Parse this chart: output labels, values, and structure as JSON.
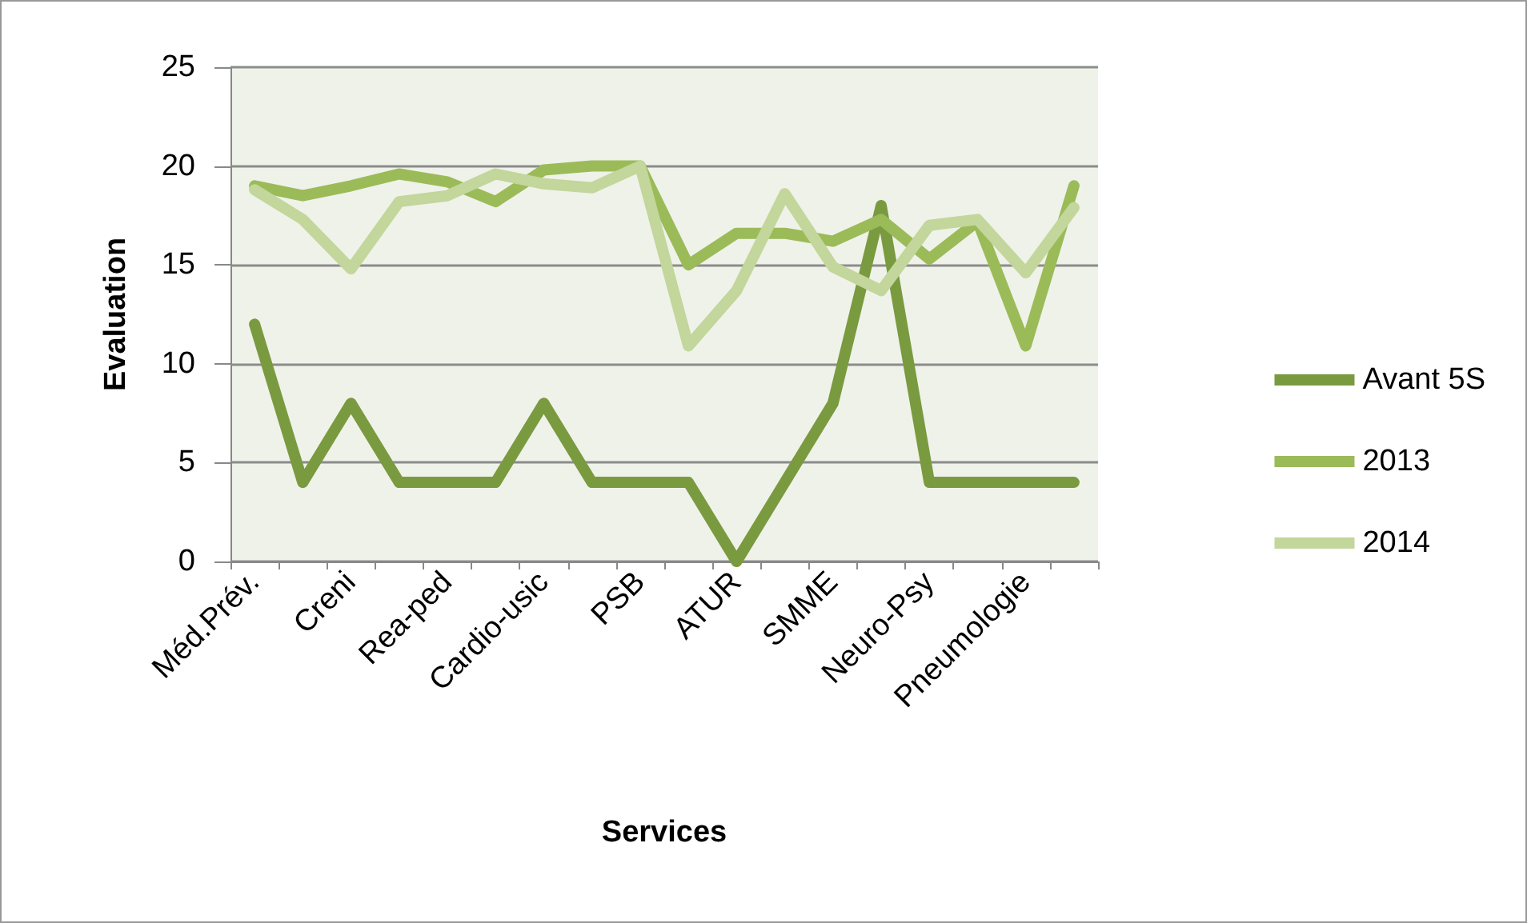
{
  "chart_data": {
    "type": "line",
    "xlabel": "Services",
    "ylabel": "Evaluation",
    "categories": [
      "Méd.Prév.",
      null,
      "Creni",
      null,
      "Rea-ped",
      null,
      "Cardio-usic",
      null,
      "PSB",
      null,
      "ATUR",
      null,
      "SMME",
      null,
      "Neuro-Psy",
      null,
      "Pneumologie",
      null
    ],
    "series": [
      {
        "name": "Avant 5S",
        "color": "#7a9a40",
        "values": [
          12,
          4,
          8,
          4,
          4,
          4,
          8,
          4,
          4,
          4,
          0,
          4,
          8,
          18,
          4,
          4,
          4,
          4
        ]
      },
      {
        "name": "2013",
        "color": "#9bbb59",
        "values": [
          19,
          18.5,
          19,
          19.6,
          19.2,
          18.2,
          19.8,
          20,
          20,
          15,
          16.6,
          16.6,
          16.2,
          17.3,
          15.3,
          17.2,
          10.9,
          19
        ]
      },
      {
        "name": "2014",
        "color": "#c3d69b",
        "values": [
          18.8,
          17.3,
          14.8,
          18.2,
          18.5,
          19.6,
          19.1,
          18.9,
          20,
          10.9,
          13.7,
          18.6,
          14.9,
          13.7,
          17,
          17.3,
          14.6,
          17.9
        ]
      }
    ],
    "ylim": [
      0,
      25
    ],
    "yticks": [
      0,
      5,
      10,
      15,
      20,
      25
    ],
    "grid": "y",
    "legend": "right",
    "marker": "none",
    "line_style": "solid"
  }
}
